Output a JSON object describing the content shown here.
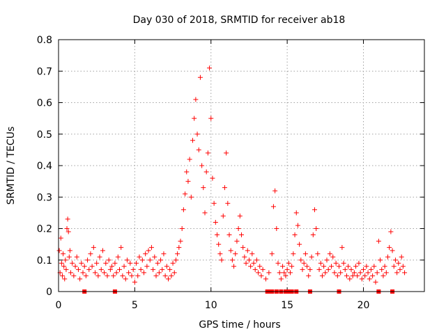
{
  "chart_data": {
    "type": "scatter",
    "title": "Day 030 of 2018, SRMTID for receiver ab18",
    "xlabel": "GPS time / hours",
    "ylabel": "SRMTID / TECUs",
    "xlim": [
      0,
      24
    ],
    "ylim": [
      0,
      0.8
    ],
    "xticks": [
      0,
      5,
      10,
      15,
      20
    ],
    "yticks": [
      0,
      0.1,
      0.2,
      0.3,
      0.4,
      0.5,
      0.6,
      0.7,
      0.8
    ],
    "xtick_labels": [
      "0",
      "5",
      "10",
      "15",
      "20"
    ],
    "ytick_labels": [
      "0",
      "0.1",
      "0.2",
      "0.3",
      "0.4",
      "0.5",
      "0.6",
      "0.7",
      "0.8"
    ],
    "grid": true,
    "marker": "+",
    "color": "#ff0000",
    "baseline_markers_x": [
      1.7,
      3.7,
      13.7,
      13.8,
      13.9,
      14.0,
      14.3,
      14.6,
      14.9,
      15.1,
      15.3,
      15.6,
      16.5,
      18.4,
      21.0,
      21.9
    ],
    "series": [
      {
        "name": "SRMTID",
        "points": [
          [
            0.05,
            0.13
          ],
          [
            0.1,
            0.06
          ],
          [
            0.15,
            0.17
          ],
          [
            0.2,
            0.09
          ],
          [
            0.25,
            0.05
          ],
          [
            0.3,
            0.12
          ],
          [
            0.35,
            0.08
          ],
          [
            0.4,
            0.04
          ],
          [
            0.45,
            0.1
          ],
          [
            0.5,
            0.07
          ],
          [
            0.55,
            0.2
          ],
          [
            0.6,
            0.23
          ],
          [
            0.65,
            0.19
          ],
          [
            0.7,
            0.11
          ],
          [
            0.75,
            0.13
          ],
          [
            0.8,
            0.06
          ],
          [
            0.9,
            0.09
          ],
          [
            1.0,
            0.05
          ],
          [
            1.1,
            0.08
          ],
          [
            1.2,
            0.11
          ],
          [
            1.3,
            0.07
          ],
          [
            1.4,
            0.04
          ],
          [
            1.5,
            0.09
          ],
          [
            1.6,
            0.06
          ],
          [
            1.7,
            0.08
          ],
          [
            1.8,
            0.05
          ],
          [
            1.9,
            0.1
          ],
          [
            2.0,
            0.07
          ],
          [
            2.1,
            0.12
          ],
          [
            2.2,
            0.08
          ],
          [
            2.3,
            0.14
          ],
          [
            2.4,
            0.06
          ],
          [
            2.5,
            0.09
          ],
          [
            2.6,
            0.05
          ],
          [
            2.7,
            0.11
          ],
          [
            2.8,
            0.07
          ],
          [
            2.9,
            0.13
          ],
          [
            3.0,
            0.06
          ],
          [
            3.1,
            0.09
          ],
          [
            3.2,
            0.05
          ],
          [
            3.3,
            0.1
          ],
          [
            3.4,
            0.07
          ],
          [
            3.5,
            0.08
          ],
          [
            3.6,
            0.05
          ],
          [
            3.7,
            0.09
          ],
          [
            3.8,
            0.06
          ],
          [
            3.9,
            0.11
          ],
          [
            4.0,
            0.07
          ],
          [
            4.1,
            0.14
          ],
          [
            4.2,
            0.05
          ],
          [
            4.3,
            0.08
          ],
          [
            4.4,
            0.04
          ],
          [
            4.5,
            0.1
          ],
          [
            4.6,
            0.06
          ],
          [
            4.7,
            0.09
          ],
          [
            4.8,
            0.05
          ],
          [
            4.9,
            0.07
          ],
          [
            5.0,
            0.03
          ],
          [
            5.1,
            0.09
          ],
          [
            5.2,
            0.05
          ],
          [
            5.3,
            0.11
          ],
          [
            5.4,
            0.07
          ],
          [
            5.5,
            0.1
          ],
          [
            5.6,
            0.06
          ],
          [
            5.7,
            0.12
          ],
          [
            5.8,
            0.08
          ],
          [
            5.9,
            0.13
          ],
          [
            6.0,
            0.1
          ],
          [
            6.1,
            0.14
          ],
          [
            6.2,
            0.07
          ],
          [
            6.3,
            0.11
          ],
          [
            6.4,
            0.05
          ],
          [
            6.5,
            0.09
          ],
          [
            6.6,
            0.06
          ],
          [
            6.7,
            0.1
          ],
          [
            6.8,
            0.07
          ],
          [
            6.9,
            0.12
          ],
          [
            7.0,
            0.05
          ],
          [
            7.1,
            0.08
          ],
          [
            7.2,
            0.04
          ],
          [
            7.3,
            0.07
          ],
          [
            7.4,
            0.05
          ],
          [
            7.5,
            0.09
          ],
          [
            7.6,
            0.06
          ],
          [
            7.7,
            0.1
          ],
          [
            7.8,
            0.12
          ],
          [
            7.9,
            0.14
          ],
          [
            8.0,
            0.16
          ],
          [
            8.1,
            0.2
          ],
          [
            8.2,
            0.26
          ],
          [
            8.3,
            0.31
          ],
          [
            8.4,
            0.38
          ],
          [
            8.5,
            0.35
          ],
          [
            8.6,
            0.42
          ],
          [
            8.7,
            0.3
          ],
          [
            8.8,
            0.48
          ],
          [
            8.9,
            0.55
          ],
          [
            9.0,
            0.61
          ],
          [
            9.1,
            0.5
          ],
          [
            9.2,
            0.45
          ],
          [
            9.3,
            0.68
          ],
          [
            9.4,
            0.4
          ],
          [
            9.5,
            0.33
          ],
          [
            9.6,
            0.25
          ],
          [
            9.7,
            0.38
          ],
          [
            9.8,
            0.44
          ],
          [
            9.9,
            0.71
          ],
          [
            10.0,
            0.55
          ],
          [
            10.1,
            0.36
          ],
          [
            10.2,
            0.28
          ],
          [
            10.3,
            0.22
          ],
          [
            10.4,
            0.18
          ],
          [
            10.5,
            0.15
          ],
          [
            10.6,
            0.12
          ],
          [
            10.7,
            0.1
          ],
          [
            10.8,
            0.24
          ],
          [
            10.9,
            0.33
          ],
          [
            11.0,
            0.44
          ],
          [
            11.1,
            0.28
          ],
          [
            11.2,
            0.18
          ],
          [
            11.3,
            0.13
          ],
          [
            11.4,
            0.1
          ],
          [
            11.5,
            0.08
          ],
          [
            11.6,
            0.12
          ],
          [
            11.7,
            0.16
          ],
          [
            11.8,
            0.2
          ],
          [
            11.9,
            0.24
          ],
          [
            12.0,
            0.18
          ],
          [
            12.1,
            0.14
          ],
          [
            12.2,
            0.11
          ],
          [
            12.3,
            0.09
          ],
          [
            12.4,
            0.13
          ],
          [
            12.5,
            0.1
          ],
          [
            12.6,
            0.08
          ],
          [
            12.7,
            0.12
          ],
          [
            12.8,
            0.09
          ],
          [
            12.9,
            0.07
          ],
          [
            13.0,
            0.1
          ],
          [
            13.1,
            0.06
          ],
          [
            13.2,
            0.08
          ],
          [
            13.3,
            0.05
          ],
          [
            13.4,
            0.07
          ],
          [
            13.6,
            0.04
          ],
          [
            13.8,
            0.06
          ],
          [
            14.0,
            0.12
          ],
          [
            14.1,
            0.27
          ],
          [
            14.2,
            0.32
          ],
          [
            14.3,
            0.2
          ],
          [
            14.4,
            0.09
          ],
          [
            14.5,
            0.06
          ],
          [
            14.6,
            0.04
          ],
          [
            14.7,
            0.08
          ],
          [
            14.8,
            0.06
          ],
          [
            14.9,
            0.05
          ],
          [
            15.0,
            0.07
          ],
          [
            15.1,
            0.09
          ],
          [
            15.2,
            0.06
          ],
          [
            15.3,
            0.08
          ],
          [
            15.4,
            0.12
          ],
          [
            15.5,
            0.18
          ],
          [
            15.6,
            0.25
          ],
          [
            15.7,
            0.21
          ],
          [
            15.8,
            0.15
          ],
          [
            15.9,
            0.1
          ],
          [
            16.0,
            0.07
          ],
          [
            16.1,
            0.09
          ],
          [
            16.2,
            0.12
          ],
          [
            16.3,
            0.08
          ],
          [
            16.4,
            0.05
          ],
          [
            16.5,
            0.07
          ],
          [
            16.6,
            0.11
          ],
          [
            16.7,
            0.18
          ],
          [
            16.8,
            0.26
          ],
          [
            16.9,
            0.2
          ],
          [
            17.0,
            0.12
          ],
          [
            17.1,
            0.07
          ],
          [
            17.2,
            0.09
          ],
          [
            17.3,
            0.05
          ],
          [
            17.4,
            0.08
          ],
          [
            17.5,
            0.06
          ],
          [
            17.6,
            0.1
          ],
          [
            17.7,
            0.07
          ],
          [
            17.8,
            0.12
          ],
          [
            17.9,
            0.08
          ],
          [
            18.0,
            0.11
          ],
          [
            18.1,
            0.06
          ],
          [
            18.2,
            0.09
          ],
          [
            18.3,
            0.05
          ],
          [
            18.4,
            0.08
          ],
          [
            18.5,
            0.06
          ],
          [
            18.6,
            0.14
          ],
          [
            18.7,
            0.09
          ],
          [
            18.8,
            0.07
          ],
          [
            18.9,
            0.05
          ],
          [
            19.0,
            0.08
          ],
          [
            19.1,
            0.04
          ],
          [
            19.2,
            0.07
          ],
          [
            19.3,
            0.05
          ],
          [
            19.4,
            0.06
          ],
          [
            19.5,
            0.08
          ],
          [
            19.6,
            0.05
          ],
          [
            19.7,
            0.09
          ],
          [
            19.8,
            0.06
          ],
          [
            19.9,
            0.04
          ],
          [
            20.0,
            0.07
          ],
          [
            20.1,
            0.05
          ],
          [
            20.2,
            0.08
          ],
          [
            20.3,
            0.06
          ],
          [
            20.4,
            0.04
          ],
          [
            20.5,
            0.07
          ],
          [
            20.6,
            0.05
          ],
          [
            20.7,
            0.08
          ],
          [
            20.8,
            0.03
          ],
          [
            20.9,
            0.06
          ],
          [
            21.0,
            0.16
          ],
          [
            21.1,
            0.1
          ],
          [
            21.2,
            0.07
          ],
          [
            21.3,
            0.05
          ],
          [
            21.4,
            0.08
          ],
          [
            21.5,
            0.06
          ],
          [
            21.6,
            0.11
          ],
          [
            21.7,
            0.14
          ],
          [
            21.8,
            0.19
          ],
          [
            21.9,
            0.13
          ],
          [
            22.0,
            0.08
          ],
          [
            22.1,
            0.1
          ],
          [
            22.2,
            0.06
          ],
          [
            22.3,
            0.09
          ],
          [
            22.4,
            0.07
          ],
          [
            22.5,
            0.11
          ],
          [
            22.6,
            0.08
          ],
          [
            22.7,
            0.06
          ]
        ]
      }
    ]
  }
}
